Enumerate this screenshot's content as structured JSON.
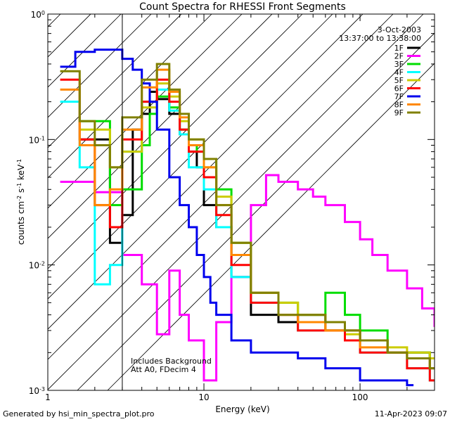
{
  "footer": {
    "generated_by": "Generated by hsi_min_spectra_plot.pro",
    "timestamp": "11-Apr-2023 09:07"
  },
  "chart_data": {
    "type": "line",
    "title": "Count Spectra for RHESSI Front Segments",
    "xlabel": "Energy (keV)",
    "ylabel": "counts cm^-2 s^-1 keV^-1",
    "x_scale": "log",
    "y_scale": "log",
    "xlim": [
      1,
      300
    ],
    "ylim": [
      0.001,
      1
    ],
    "x_tick_labels": [
      "1",
      "10",
      "100"
    ],
    "y_tick_labels": [
      "10^0",
      "10^-1",
      "10^-2",
      "10^-3"
    ],
    "date": "3-Oct-2003",
    "time_range": "13:37:00 to 13:38:00",
    "notes": [
      "Includes Background",
      "Att A0, FDecim 4"
    ],
    "hatched_region_upper_kev": 3,
    "legend_position": "top-right",
    "series": [
      {
        "name": "1F",
        "color": "#000000",
        "x": [
          1.6,
          2.5,
          3.0,
          3.5,
          4.0,
          4.5,
          5.0,
          6.0,
          7.0,
          8.0,
          9.0,
          10.0,
          11.0,
          12.0,
          15.0,
          20.0,
          30.0,
          40.0,
          60.0,
          80.0,
          100.0,
          150.0,
          200.0,
          280.0
        ],
        "y": [
          0.1,
          0.015,
          0.025,
          0.12,
          0.16,
          0.24,
          0.21,
          0.16,
          0.11,
          0.08,
          0.06,
          0.03,
          0.03,
          0.02,
          0.008,
          0.004,
          0.0035,
          0.004,
          0.003,
          0.003,
          0.0025,
          0.002,
          0.002,
          0.0015
        ]
      },
      {
        "name": "2F",
        "color": "#ff00ff",
        "x": [
          1.2,
          2.0,
          3.0,
          4.0,
          5.0,
          6.0,
          7.0,
          8.0,
          10.0,
          12.0,
          15.0,
          20.0,
          25.0,
          30.0,
          40.0,
          50.0,
          60.0,
          80.0,
          100.0,
          120.0,
          150.0,
          200.0,
          250.0,
          300.0
        ],
        "y": [
          0.046,
          0.038,
          0.012,
          0.007,
          0.0028,
          0.009,
          0.004,
          0.0025,
          0.0012,
          0.0035,
          0.008,
          0.03,
          0.052,
          0.046,
          0.04,
          0.035,
          0.03,
          0.022,
          0.016,
          0.012,
          0.009,
          0.0065,
          0.0045,
          0.0032
        ]
      },
      {
        "name": "3F",
        "color": "#00dd00",
        "x": [
          1.6,
          2.5,
          3.0,
          4.0,
          4.5,
          5.0,
          6.0,
          7.0,
          8.0,
          9.0,
          10.0,
          12.0,
          15.0,
          20.0,
          30.0,
          40.0,
          60.0,
          80.0,
          100.0,
          150.0,
          200.0,
          280.0
        ],
        "y": [
          0.14,
          0.03,
          0.04,
          0.09,
          0.16,
          0.22,
          0.18,
          0.12,
          0.09,
          0.08,
          0.07,
          0.04,
          0.015,
          0.006,
          0.005,
          0.004,
          0.006,
          0.004,
          0.003,
          0.002,
          0.002,
          0.0018
        ]
      },
      {
        "name": "4F",
        "color": "#00ffff",
        "x": [
          1.2,
          1.6,
          2.0,
          2.5,
          3.0,
          4.0,
          5.0,
          6.0,
          7.0,
          8.0,
          10.0,
          12.0,
          15.0,
          20.0,
          30.0,
          40.0,
          60.0,
          80.0,
          100.0,
          150.0,
          200.0,
          280.0
        ],
        "y": [
          0.2,
          0.06,
          0.007,
          0.01,
          0.08,
          0.2,
          0.25,
          0.17,
          0.11,
          0.06,
          0.04,
          0.02,
          0.008,
          0.005,
          0.004,
          0.003,
          0.003,
          0.0025,
          0.002,
          0.002,
          0.0015,
          0.0012
        ]
      },
      {
        "name": "5F",
        "color": "#cccc00",
        "x": [
          1.6,
          2.5,
          3.0,
          4.0,
          5.0,
          6.0,
          7.0,
          8.0,
          10.0,
          12.0,
          15.0,
          20.0,
          30.0,
          40.0,
          60.0,
          80.0,
          100.0,
          150.0,
          200.0,
          280.0
        ],
        "y": [
          0.12,
          0.06,
          0.08,
          0.18,
          0.28,
          0.22,
          0.14,
          0.1,
          0.06,
          0.035,
          0.015,
          0.006,
          0.005,
          0.004,
          0.003,
          0.0028,
          0.0025,
          0.0022,
          0.002,
          0.0018
        ]
      },
      {
        "name": "6F",
        "color": "#ff0000",
        "x": [
          1.2,
          1.6,
          2.0,
          2.5,
          3.0,
          4.0,
          5.0,
          6.0,
          7.0,
          8.0,
          10.0,
          12.0,
          15.0,
          20.0,
          30.0,
          40.0,
          60.0,
          80.0,
          100.0,
          150.0,
          200.0,
          280.0
        ],
        "y": [
          0.3,
          0.1,
          0.03,
          0.02,
          0.1,
          0.2,
          0.3,
          0.2,
          0.12,
          0.08,
          0.05,
          0.025,
          0.01,
          0.005,
          0.004,
          0.003,
          0.003,
          0.0025,
          0.002,
          0.002,
          0.0015,
          0.0012
        ]
      },
      {
        "name": "7F",
        "color": "#0000ee",
        "x": [
          1.2,
          1.5,
          2.0,
          2.5,
          3.0,
          3.5,
          4.0,
          4.5,
          5.0,
          6.0,
          7.0,
          8.0,
          9.0,
          10.0,
          11.0,
          12.0,
          15.0,
          20.0,
          30.0,
          40.0,
          60.0,
          80.0,
          100.0,
          150.0,
          200.0
        ],
        "y": [
          0.38,
          0.5,
          0.52,
          0.52,
          0.44,
          0.36,
          0.28,
          0.2,
          0.12,
          0.05,
          0.03,
          0.02,
          0.012,
          0.008,
          0.005,
          0.004,
          0.0025,
          0.002,
          0.002,
          0.0018,
          0.0015,
          0.0015,
          0.0012,
          0.0012,
          0.0011
        ]
      },
      {
        "name": "8F",
        "color": "#ff8800",
        "x": [
          1.2,
          1.6,
          2.0,
          2.5,
          3.0,
          4.0,
          5.0,
          6.0,
          7.0,
          8.0,
          10.0,
          12.0,
          15.0,
          20.0,
          30.0,
          40.0,
          60.0,
          80.0,
          100.0,
          150.0,
          200.0,
          280.0
        ],
        "y": [
          0.25,
          0.09,
          0.03,
          0.04,
          0.12,
          0.26,
          0.36,
          0.24,
          0.15,
          0.09,
          0.06,
          0.03,
          0.012,
          0.006,
          0.004,
          0.0035,
          0.003,
          0.003,
          0.0022,
          0.002,
          0.0018,
          0.0015
        ]
      },
      {
        "name": "9F",
        "color": "#808000",
        "x": [
          1.2,
          1.6,
          2.0,
          2.5,
          3.0,
          4.0,
          5.0,
          6.0,
          7.0,
          8.0,
          10.0,
          12.0,
          15.0,
          20.0,
          30.0,
          40.0,
          60.0,
          80.0,
          100.0,
          150.0,
          200.0,
          280.0
        ],
        "y": [
          0.35,
          0.14,
          0.09,
          0.06,
          0.15,
          0.3,
          0.4,
          0.25,
          0.16,
          0.1,
          0.07,
          0.03,
          0.015,
          0.006,
          0.004,
          0.004,
          0.0035,
          0.003,
          0.0025,
          0.002,
          0.0018,
          0.0015
        ]
      }
    ]
  }
}
